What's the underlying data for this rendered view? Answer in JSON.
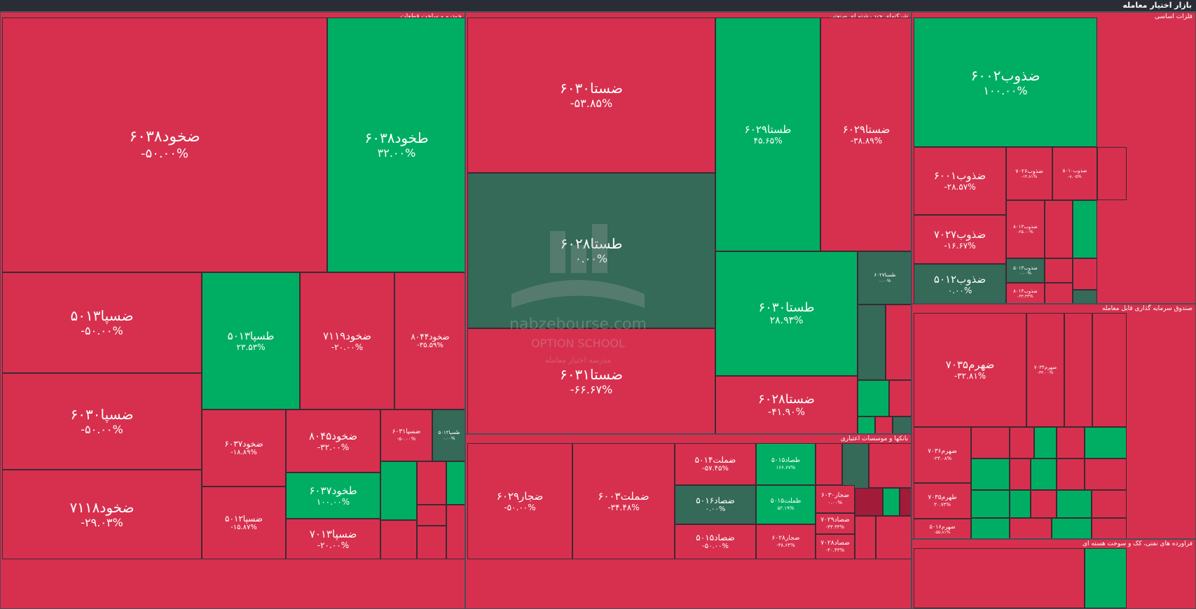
{
  "header": {
    "title": "بازار اختیار معامله"
  },
  "colors": {
    "negative": "#d7304e",
    "positive": "#00ae63",
    "neutral": "#356958",
    "background": "#23252f"
  },
  "watermark": {
    "brand": "nabzebourse.com",
    "line1": "OPTION SCHOOL",
    "line2": "مدرسه اختیار معامله"
  },
  "chart_data": {
    "type": "heatmap",
    "title": "بازار اختیار معامله",
    "sectors": [
      {
        "name": "خودرو و ساخت قطعات",
        "items": [
          {
            "name": "ضخود۶۰۳۸",
            "change": "-۵۰.۰۰%"
          },
          {
            "name": "طخود۶۰۳۸",
            "change": "۳۲.۰۰%"
          },
          {
            "name": "ضسپا۵۰۱۳",
            "change": "-۵۰.۰۰%"
          },
          {
            "name": "طسپا۵۰۱۳",
            "change": "۲۳.۵۳%"
          },
          {
            "name": "ضخود۷۱۱۹",
            "change": "-۲۰.۰۰%"
          },
          {
            "name": "ضخود۸۰۴۴",
            "change": "-۳۵.۵۹%"
          },
          {
            "name": "ضسپا۶۰۳۰",
            "change": "-۵۰.۰۰%"
          },
          {
            "name": "ضخود۶۰۳۷",
            "change": "-۱۸.۸۹%"
          },
          {
            "name": "ضخود۸۰۴۵",
            "change": "-۳۲.۰۰%"
          },
          {
            "name": "ضسپا۶۰۳۱",
            "change": "-۵۰.۰۰%"
          },
          {
            "name": "طسپا۵۰۱۲",
            "change": "۰.۰۰%"
          },
          {
            "name": "طخود۶۰۳۷",
            "change": "۱۰۰.۰۰%"
          },
          {
            "name": "ضخود۷۱۱۸",
            "change": "-۲۹.۰۳%"
          },
          {
            "name": "ضسپا۵۰۱۲",
            "change": "-۱۵.۸۷%"
          },
          {
            "name": "ضسپا۷۰۱۳",
            "change": "-۲۰.۰۰%"
          }
        ]
      },
      {
        "name": "شرکتهای چند رشته ای صنعتی",
        "items": [
          {
            "name": "ضستا۶۰۳۰",
            "change": "-۵۳.۸۵%"
          },
          {
            "name": "طستا۶۰۲۹",
            "change": "۴۵.۶۵%"
          },
          {
            "name": "ضستا۶۰۲۹",
            "change": "-۳۸.۸۹%"
          },
          {
            "name": "طستا۶۰۲۸",
            "change": "۰.۰۰%"
          },
          {
            "name": "طستا۶۰۳۰",
            "change": "۲۸.۹۳%"
          },
          {
            "name": "طستا۶۰۲۷",
            "change": "۰.۰۰%"
          },
          {
            "name": "ضستا۶۰۳۱",
            "change": "-۶۶.۶۷%"
          },
          {
            "name": "ضستا۶۰۲۸",
            "change": "-۴۱.۹۰%"
          }
        ]
      },
      {
        "name": "بانکها و موسسات اعتباری",
        "items": [
          {
            "name": "ضجار۶۰۲۹",
            "change": "-۵۰.۰۰%"
          },
          {
            "name": "ضملت۶۰۰۳",
            "change": "-۳۴.۴۸%"
          },
          {
            "name": "ضملت۵۰۱۴",
            "change": "-۵۷.۴۵%"
          },
          {
            "name": "طصاد۵۰۱۵",
            "change": "۱۶۶.۶۷%"
          },
          {
            "name": "ضصاد۵۰۱۶",
            "change": "۰.۰۰%"
          },
          {
            "name": "طملت۵۰۱۵",
            "change": "۵۲.۱۹%"
          },
          {
            "name": "ضصاد۵۰۱۵",
            "change": "-۵۰.۰۰%"
          },
          {
            "name": "ضجار۶۰۲۸",
            "change": "-۳۸.۶۴%"
          },
          {
            "name": "ضجار۶۰۳۰",
            "change": "۰.۰۰%"
          },
          {
            "name": "ضصاد۷۰۲۹",
            "change": "-۳۳.۳۳%"
          },
          {
            "name": "ضصاد۷۰۲۸",
            "change": "-۴۰.۴۳%"
          }
        ]
      },
      {
        "name": "فلزات اساسی",
        "items": [
          {
            "name": "ضذوب۶۰۰۲",
            "change": "۱۰۰.۰۰%"
          },
          {
            "name": "ضذوب۶۰۰۱",
            "change": "-۲۸.۵۷%"
          },
          {
            "name": "ضذوب۷۰۲۶",
            "change": "-۱۴.۸۱%"
          },
          {
            "name": "ضذوب۵۰۱۰",
            "change": "-۸.۰۵%"
          },
          {
            "name": "ضذوب۷۰۲۷",
            "change": "-۱۶.۶۷%"
          },
          {
            "name": "ضذوب۸۰۱۳",
            "change": "-۲۵.۰۰%"
          },
          {
            "name": "ضذوب۵۰۱۲",
            "change": "۰.۰۰%"
          },
          {
            "name": "ضذوب۵۰۱۳",
            "change": "۰.۰۰%"
          },
          {
            "name": "ضذوب۸۰۱۴",
            "change": "-۳۳.۳۳%"
          }
        ]
      },
      {
        "name": "صندوق سرمایه گذاری قابل معامله",
        "items": [
          {
            "name": "ضهرم۷۰۳۵",
            "change": "-۳۲.۸۱%"
          },
          {
            "name": "ضهرم۷۰۳۴",
            "change": "-۳۳.۰۰%"
          },
          {
            "name": "ضهرم۷۰۳۶",
            "change": "-۲۳.۰۸%"
          },
          {
            "name": "طهرم۷۰۳۵",
            "change": "۳۰.۷۳%"
          },
          {
            "name": "ضهرم۵۰۱۶",
            "change": "-۵۵.۸۱%"
          }
        ]
      },
      {
        "name": "فراورده های نفتی، کک و سوخت هسته ای",
        "items": []
      }
    ]
  }
}
